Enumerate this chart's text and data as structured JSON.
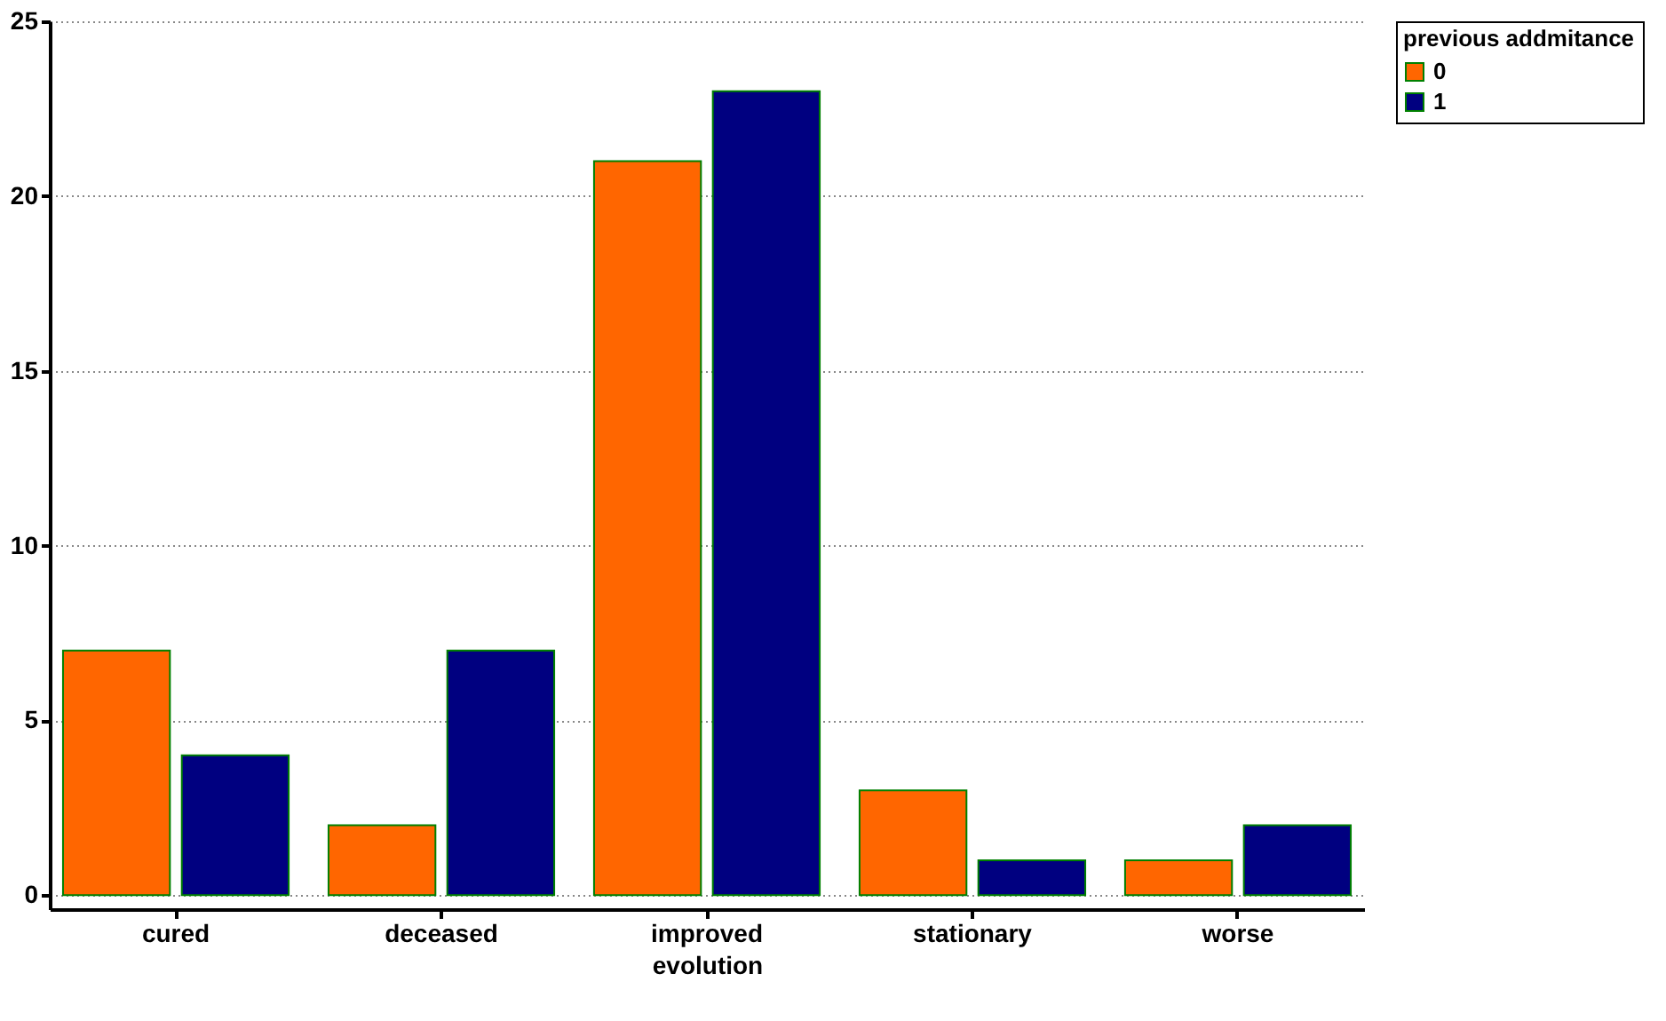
{
  "chart_data": {
    "type": "bar",
    "xlabel": "evolution",
    "legend_title": "previous addmitance",
    "categories": [
      "cured",
      "deceased",
      "improved",
      "stationary",
      "worse"
    ],
    "series": [
      {
        "name": "0",
        "color": "#ff6600",
        "values": [
          7,
          2,
          21,
          3,
          1
        ]
      },
      {
        "name": "1",
        "color": "#000080",
        "values": [
          4,
          7,
          23,
          1,
          2
        ]
      }
    ],
    "ylim": [
      -0.4,
      25
    ],
    "yticks": [
      0,
      5,
      10,
      15,
      20,
      25
    ],
    "grid": "y",
    "legend": "right"
  }
}
